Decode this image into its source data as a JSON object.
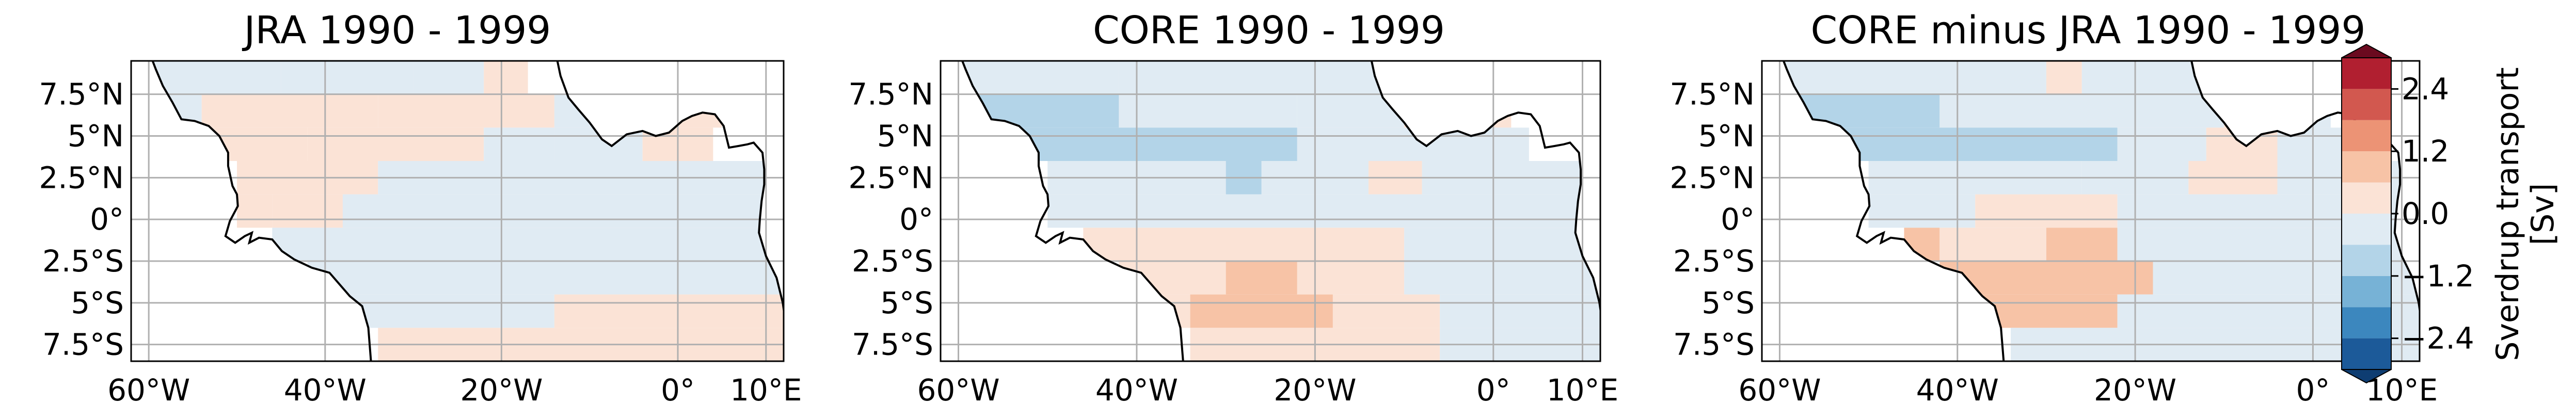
{
  "figure": {
    "x_ticks": [
      "60°W",
      "40°W",
      "20°W",
      "0°",
      "10°E"
    ],
    "y_ticks": [
      "7.5°N",
      "5°N",
      "2.5°N",
      "0°",
      "2.5°S",
      "5°S",
      "7.5°S"
    ]
  },
  "chart_data": [
    {
      "type": "heatmap",
      "title": "JRA 1990 - 1999",
      "xlim": [
        -62,
        12
      ],
      "ylim": [
        -8.5,
        9.5
      ],
      "cell_size_deg": [
        4,
        2
      ],
      "colors": {
        "land": "#ffffff",
        "coast": "#000000",
        "grid": "#b0b0b0"
      },
      "cells": [
        {
          "lon": [
            -62,
            -45
          ],
          "lat": [
            7.5,
            9.5
          ],
          "value": 0.0
        },
        {
          "lon": [
            -45,
            -30
          ],
          "lat": [
            7.5,
            9.5
          ],
          "value": -0.3
        },
        {
          "lon": [
            -30,
            -22
          ],
          "lat": [
            7.5,
            9.5
          ],
          "value": 0.0
        },
        {
          "lon": [
            -22,
            -17
          ],
          "lat": [
            7.5,
            9.5
          ],
          "value": 0.3
        },
        {
          "lon": [
            -62,
            -54
          ],
          "lat": [
            5.5,
            7.5
          ],
          "value": -0.3
        },
        {
          "lon": [
            -54,
            -34
          ],
          "lat": [
            5.5,
            7.5
          ],
          "value": 0.3
        },
        {
          "lon": [
            -34,
            -25
          ],
          "lat": [
            5.5,
            7.5
          ],
          "value": 0.3
        },
        {
          "lon": [
            -25,
            -14
          ],
          "lat": [
            5.5,
            7.5
          ],
          "value": 0.3
        },
        {
          "lon": [
            -14,
            -10
          ],
          "lat": [
            5.5,
            7.5
          ],
          "value": 0.0
        },
        {
          "lon": [
            -10,
            -5
          ],
          "lat": [
            5.5,
            7.5
          ],
          "value": 0.0
        },
        {
          "lon": [
            -5,
            5
          ],
          "lat": [
            5.5,
            7.5
          ],
          "value": 0.3
        },
        {
          "lon": [
            5,
            12
          ],
          "lat": [
            5.5,
            7.5
          ],
          "value": -0.3
        },
        {
          "lon": [
            -58,
            -42
          ],
          "lat": [
            3.5,
            5.5
          ],
          "value": 0.3
        },
        {
          "lon": [
            -42,
            -22
          ],
          "lat": [
            3.5,
            5.5
          ],
          "value": 0.3
        },
        {
          "lon": [
            -22,
            -14
          ],
          "lat": [
            3.5,
            5.5
          ],
          "value": 0.0
        },
        {
          "lon": [
            -14,
            -4
          ],
          "lat": [
            3.5,
            5.5
          ],
          "value": -0.3
        },
        {
          "lon": [
            -4,
            4
          ],
          "lat": [
            3.5,
            5.5
          ],
          "value": 0.3
        },
        {
          "lon": [
            -50,
            -34
          ],
          "lat": [
            1.5,
            3.5
          ],
          "value": 0.3
        },
        {
          "lon": [
            -34,
            12
          ],
          "lat": [
            1.5,
            3.5
          ],
          "value": -0.3
        },
        {
          "lon": [
            -50,
            -46
          ],
          "lat": [
            -0.5,
            1.5
          ],
          "value": 0.3
        },
        {
          "lon": [
            -46,
            -38
          ],
          "lat": [
            -0.5,
            1.5
          ],
          "value": 0.3
        },
        {
          "lon": [
            -38,
            12
          ],
          "lat": [
            -0.5,
            1.5
          ],
          "value": -0.3
        },
        {
          "lon": [
            -46,
            12
          ],
          "lat": [
            -2.5,
            -0.5
          ],
          "value": -0.3
        },
        {
          "lon": [
            -42,
            12
          ],
          "lat": [
            -4.5,
            -2.5
          ],
          "value": -0.3
        },
        {
          "lon": [
            -38,
            -14
          ],
          "lat": [
            -6.5,
            -4.5
          ],
          "value": -0.3
        },
        {
          "lon": [
            -14,
            12
          ],
          "lat": [
            -6.5,
            -4.5
          ],
          "value": 0.3
        },
        {
          "lon": [
            -34,
            12
          ],
          "lat": [
            -8.5,
            -6.5
          ],
          "value": 0.3
        }
      ]
    },
    {
      "type": "heatmap",
      "title": "CORE 1990 - 1999",
      "xlim": [
        -62,
        12
      ],
      "ylim": [
        -8.5,
        9.5
      ],
      "cell_size_deg": [
        4,
        2
      ],
      "cells": [
        {
          "lon": [
            -62,
            -42
          ],
          "lat": [
            7.5,
            9.5
          ],
          "value": -0.3
        },
        {
          "lon": [
            -42,
            -10
          ],
          "lat": [
            7.5,
            9.5
          ],
          "value": -0.3
        },
        {
          "lon": [
            -10,
            -6
          ],
          "lat": [
            7.5,
            9.5
          ],
          "value": 0.3
        },
        {
          "lon": [
            -6,
            2
          ],
          "lat": [
            7.5,
            9.5
          ],
          "value": -0.3
        },
        {
          "lon": [
            -58,
            -42
          ],
          "lat": [
            5.5,
            7.5
          ],
          "value": -0.9
        },
        {
          "lon": [
            -42,
            -22
          ],
          "lat": [
            5.5,
            7.5
          ],
          "value": -0.3
        },
        {
          "lon": [
            -22,
            -10
          ],
          "lat": [
            5.5,
            7.5
          ],
          "value": -0.3
        },
        {
          "lon": [
            -10,
            -6
          ],
          "lat": [
            5.5,
            7.5
          ],
          "value": 0.3
        },
        {
          "lon": [
            -6,
            0
          ],
          "lat": [
            5.5,
            7.5
          ],
          "value": -0.3
        },
        {
          "lon": [
            0,
            2
          ],
          "lat": [
            5.5,
            7.5
          ],
          "value": 0.3
        },
        {
          "lon": [
            -54,
            -22
          ],
          "lat": [
            3.5,
            5.5
          ],
          "value": -0.9
        },
        {
          "lon": [
            -22,
            -12
          ],
          "lat": [
            3.5,
            5.5
          ],
          "value": -0.3
        },
        {
          "lon": [
            -12,
            4
          ],
          "lat": [
            3.5,
            5.5
          ],
          "value": -0.3
        },
        {
          "lon": [
            -50,
            -30
          ],
          "lat": [
            1.5,
            3.5
          ],
          "value": -0.3
        },
        {
          "lon": [
            -30,
            -26
          ],
          "lat": [
            1.5,
            3.5
          ],
          "value": -0.9
        },
        {
          "lon": [
            -26,
            -14
          ],
          "lat": [
            1.5,
            3.5
          ],
          "value": -0.3
        },
        {
          "lon": [
            -14,
            -8
          ],
          "lat": [
            1.5,
            3.5
          ],
          "value": 0.3
        },
        {
          "lon": [
            -8,
            12
          ],
          "lat": [
            1.5,
            3.5
          ],
          "value": -0.3
        },
        {
          "lon": [
            -50,
            12
          ],
          "lat": [
            -0.5,
            1.5
          ],
          "value": -0.3
        },
        {
          "lon": [
            -46,
            -10
          ],
          "lat": [
            -2.5,
            -0.5
          ],
          "value": 0.3
        },
        {
          "lon": [
            -10,
            12
          ],
          "lat": [
            -2.5,
            -0.5
          ],
          "value": -0.3
        },
        {
          "lon": [
            -42,
            -30
          ],
          "lat": [
            -4.5,
            -2.5
          ],
          "value": 0.3
        },
        {
          "lon": [
            -30,
            -22
          ],
          "lat": [
            -4.5,
            -2.5
          ],
          "value": 0.9
        },
        {
          "lon": [
            -22,
            -10
          ],
          "lat": [
            -4.5,
            -2.5
          ],
          "value": 0.3
        },
        {
          "lon": [
            -10,
            12
          ],
          "lat": [
            -4.5,
            -2.5
          ],
          "value": -0.3
        },
        {
          "lon": [
            -38,
            -34
          ],
          "lat": [
            -6.5,
            -4.5
          ],
          "value": 0.3
        },
        {
          "lon": [
            -34,
            -18
          ],
          "lat": [
            -6.5,
            -4.5
          ],
          "value": 0.9
        },
        {
          "lon": [
            -18,
            -6
          ],
          "lat": [
            -6.5,
            -4.5
          ],
          "value": 0.3
        },
        {
          "lon": [
            -6,
            12
          ],
          "lat": [
            -6.5,
            -4.5
          ],
          "value": -0.3
        },
        {
          "lon": [
            -34,
            -6
          ],
          "lat": [
            -8.5,
            -6.5
          ],
          "value": 0.3
        },
        {
          "lon": [
            -6,
            12
          ],
          "lat": [
            -8.5,
            -6.5
          ],
          "value": -0.3
        }
      ]
    },
    {
      "type": "heatmap",
      "title": "CORE minus JRA 1990 - 1999",
      "xlim": [
        -62,
        12
      ],
      "ylim": [
        -8.5,
        9.5
      ],
      "cell_size_deg": [
        4,
        2
      ],
      "cells": [
        {
          "lon": [
            -62,
            -30
          ],
          "lat": [
            7.5,
            9.5
          ],
          "value": -0.3
        },
        {
          "lon": [
            -30,
            -26
          ],
          "lat": [
            7.5,
            9.5
          ],
          "value": 0.3
        },
        {
          "lon": [
            -26,
            -10
          ],
          "lat": [
            7.5,
            9.5
          ],
          "value": -0.3
        },
        {
          "lon": [
            -10,
            -6
          ],
          "lat": [
            7.5,
            9.5
          ],
          "value": 0.3
        },
        {
          "lon": [
            -6,
            2
          ],
          "lat": [
            7.5,
            9.5
          ],
          "value": -0.3
        },
        {
          "lon": [
            -58,
            -42
          ],
          "lat": [
            5.5,
            7.5
          ],
          "value": -0.9
        },
        {
          "lon": [
            -42,
            -10
          ],
          "lat": [
            5.5,
            7.5
          ],
          "value": -0.3
        },
        {
          "lon": [
            -10,
            -6
          ],
          "lat": [
            5.5,
            7.5
          ],
          "value": 0.3
        },
        {
          "lon": [
            -6,
            2
          ],
          "lat": [
            5.5,
            7.5
          ],
          "value": -0.3
        },
        {
          "lon": [
            -54,
            -22
          ],
          "lat": [
            3.5,
            5.5
          ],
          "value": -0.9
        },
        {
          "lon": [
            -22,
            -12
          ],
          "lat": [
            3.5,
            5.5
          ],
          "value": -0.3
        },
        {
          "lon": [
            -12,
            -4
          ],
          "lat": [
            3.5,
            5.5
          ],
          "value": 0.3
        },
        {
          "lon": [
            -4,
            4
          ],
          "lat": [
            3.5,
            5.5
          ],
          "value": -0.3
        },
        {
          "lon": [
            -50,
            -26
          ],
          "lat": [
            1.5,
            3.5
          ],
          "value": -0.3
        },
        {
          "lon": [
            -26,
            -14
          ],
          "lat": [
            1.5,
            3.5
          ],
          "value": 0.0
        },
        {
          "lon": [
            -14,
            -4
          ],
          "lat": [
            1.5,
            3.5
          ],
          "value": 0.3
        },
        {
          "lon": [
            -4,
            12
          ],
          "lat": [
            1.5,
            3.5
          ],
          "value": -0.3
        },
        {
          "lon": [
            -50,
            -38
          ],
          "lat": [
            -0.5,
            1.5
          ],
          "value": -0.3
        },
        {
          "lon": [
            -38,
            -22
          ],
          "lat": [
            -0.5,
            1.5
          ],
          "value": 0.3
        },
        {
          "lon": [
            -22,
            12
          ],
          "lat": [
            -0.5,
            1.5
          ],
          "value": -0.3
        },
        {
          "lon": [
            -46,
            -42
          ],
          "lat": [
            -2.5,
            -0.5
          ],
          "value": 0.9
        },
        {
          "lon": [
            -42,
            -30
          ],
          "lat": [
            -2.5,
            -0.5
          ],
          "value": 0.3
        },
        {
          "lon": [
            -30,
            -22
          ],
          "lat": [
            -2.5,
            -0.5
          ],
          "value": 0.9
        },
        {
          "lon": [
            -22,
            12
          ],
          "lat": [
            -2.5,
            -0.5
          ],
          "value": -0.3
        },
        {
          "lon": [
            -42,
            -18
          ],
          "lat": [
            -4.5,
            -2.5
          ],
          "value": 0.9
        },
        {
          "lon": [
            -18,
            12
          ],
          "lat": [
            -4.5,
            -2.5
          ],
          "value": -0.3
        },
        {
          "lon": [
            -38,
            -22
          ],
          "lat": [
            -6.5,
            -4.5
          ],
          "value": 0.9
        },
        {
          "lon": [
            -22,
            12
          ],
          "lat": [
            -6.5,
            -4.5
          ],
          "value": -0.3
        },
        {
          "lon": [
            -34,
            12
          ],
          "lat": [
            -8.5,
            -6.5
          ],
          "value": -0.3
        }
      ]
    }
  ],
  "colorbar": {
    "label_line1": "Sverdrup transport",
    "label_line2": "[Sv]",
    "range": [
      -3.0,
      3.0
    ],
    "extend": "both",
    "tick_values": [
      -2.4,
      -1.2,
      0.0,
      1.2,
      2.4
    ],
    "tick_labels": [
      "−2.4",
      "−1.2",
      "0.0",
      "1.2",
      "2.4"
    ],
    "bins": [
      {
        "from": -3.0,
        "to": -2.4,
        "color": "#1c5a99"
      },
      {
        "from": -2.4,
        "to": -1.8,
        "color": "#3c87be"
      },
      {
        "from": -1.8,
        "to": -1.2,
        "color": "#77b2d6"
      },
      {
        "from": -1.2,
        "to": -0.6,
        "color": "#b3d4e8"
      },
      {
        "from": -0.6,
        "to": 0.0,
        "color": "#e0ebf3"
      },
      {
        "from": 0.0,
        "to": 0.6,
        "color": "#fbe3d6"
      },
      {
        "from": 0.6,
        "to": 1.2,
        "color": "#f7c3a6"
      },
      {
        "from": 1.2,
        "to": 1.8,
        "color": "#ec9375"
      },
      {
        "from": 1.8,
        "to": 2.4,
        "color": "#d2584f"
      },
      {
        "from": 2.4,
        "to": 3.0,
        "color": "#b11f30"
      }
    ],
    "under_color": "#0e3d72",
    "over_color": "#6b0a1f"
  }
}
